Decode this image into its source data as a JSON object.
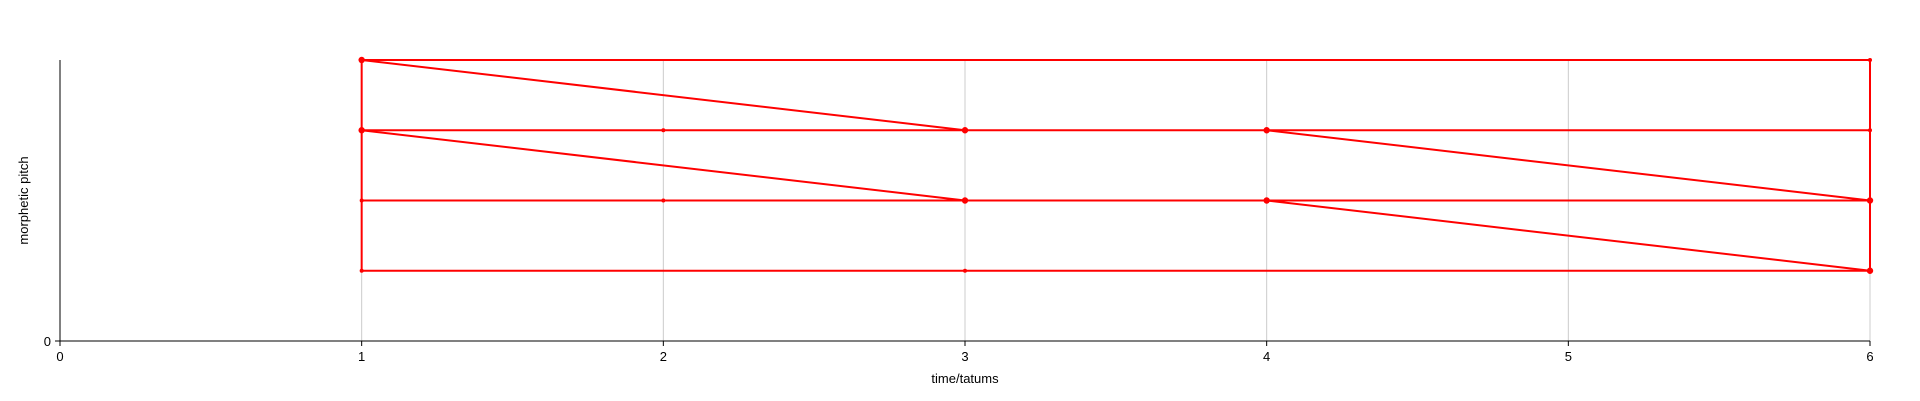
{
  "chart_data": {
    "type": "line",
    "xlabel": "time/tatums",
    "ylabel": "morphetic pitch",
    "xlim": [
      0,
      6
    ],
    "ylim": [
      0,
      4
    ],
    "x_ticks": [
      "0",
      "1",
      "2",
      "3",
      "4",
      "5",
      "6"
    ],
    "y_ticks": [
      "0"
    ],
    "grid": "vertical",
    "series_color": "#ff0000",
    "segments": [
      {
        "x1": 1,
        "y1": 4,
        "x2": 6,
        "y2": 4
      },
      {
        "x1": 1,
        "y1": 3,
        "x2": 6,
        "y2": 3
      },
      {
        "x1": 1,
        "y1": 2,
        "x2": 6,
        "y2": 2
      },
      {
        "x1": 1,
        "y1": 1,
        "x2": 6,
        "y2": 1
      },
      {
        "x1": 1,
        "y1": 1,
        "x2": 1,
        "y2": 4
      },
      {
        "x1": 6,
        "y1": 1,
        "x2": 6,
        "y2": 4
      },
      {
        "x1": 1,
        "y1": 4,
        "x2": 3,
        "y2": 3
      },
      {
        "x1": 1,
        "y1": 3,
        "x2": 3,
        "y2": 2
      },
      {
        "x1": 4,
        "y1": 3,
        "x2": 6,
        "y2": 2
      },
      {
        "x1": 4,
        "y1": 2,
        "x2": 6,
        "y2": 1
      }
    ],
    "points": [
      {
        "x": 1,
        "y": 4,
        "size": "large"
      },
      {
        "x": 1,
        "y": 3,
        "size": "large"
      },
      {
        "x": 1,
        "y": 2,
        "size": "small"
      },
      {
        "x": 1,
        "y": 1,
        "size": "small"
      },
      {
        "x": 2,
        "y": 3,
        "size": "small"
      },
      {
        "x": 2,
        "y": 2,
        "size": "small"
      },
      {
        "x": 3,
        "y": 3,
        "size": "large"
      },
      {
        "x": 3,
        "y": 2,
        "size": "large"
      },
      {
        "x": 3,
        "y": 1,
        "size": "small"
      },
      {
        "x": 4,
        "y": 3,
        "size": "large"
      },
      {
        "x": 4,
        "y": 2,
        "size": "large"
      },
      {
        "x": 6,
        "y": 4,
        "size": "small"
      },
      {
        "x": 6,
        "y": 3,
        "size": "small"
      },
      {
        "x": 6,
        "y": 2,
        "size": "large"
      },
      {
        "x": 6,
        "y": 1,
        "size": "large"
      }
    ]
  }
}
